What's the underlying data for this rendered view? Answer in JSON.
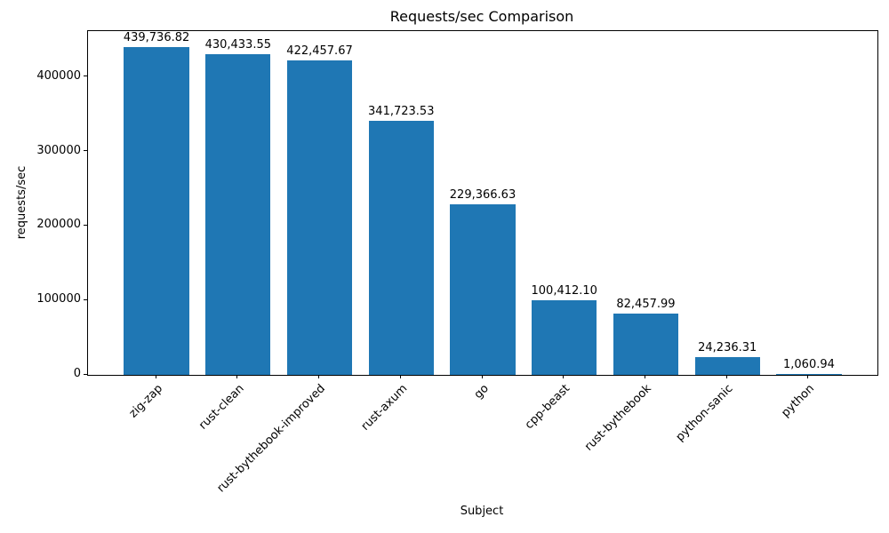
{
  "chart_data": {
    "type": "bar",
    "title": "Requests/sec Comparison",
    "xlabel": "Subject",
    "ylabel": "requests/sec",
    "categories": [
      "zig-zap",
      "rust-clean",
      "rust-bythebook-improved",
      "rust-axum",
      "go",
      "cpp-beast",
      "rust-bythebook",
      "python-sanic",
      "python"
    ],
    "values": [
      439736.82,
      430433.55,
      422457.67,
      341723.53,
      229366.63,
      100412.1,
      82457.99,
      24236.31,
      1060.94
    ],
    "value_labels": [
      "439,736.82",
      "430,433.55",
      "422,457.67",
      "341,723.53",
      "229,366.63",
      "100,412.10",
      "82,457.99",
      "24,236.31",
      "1,060.94"
    ],
    "yticks": [
      0,
      100000,
      200000,
      300000,
      400000
    ],
    "ytick_labels": [
      "0",
      "100000",
      "200000",
      "300000",
      "400000"
    ],
    "ylim": [
      0,
      461723.66
    ],
    "x_tick_rotation": 45,
    "bar_color": "#1f77b4",
    "text_color": "#000000",
    "grid": false,
    "legend": null
  }
}
